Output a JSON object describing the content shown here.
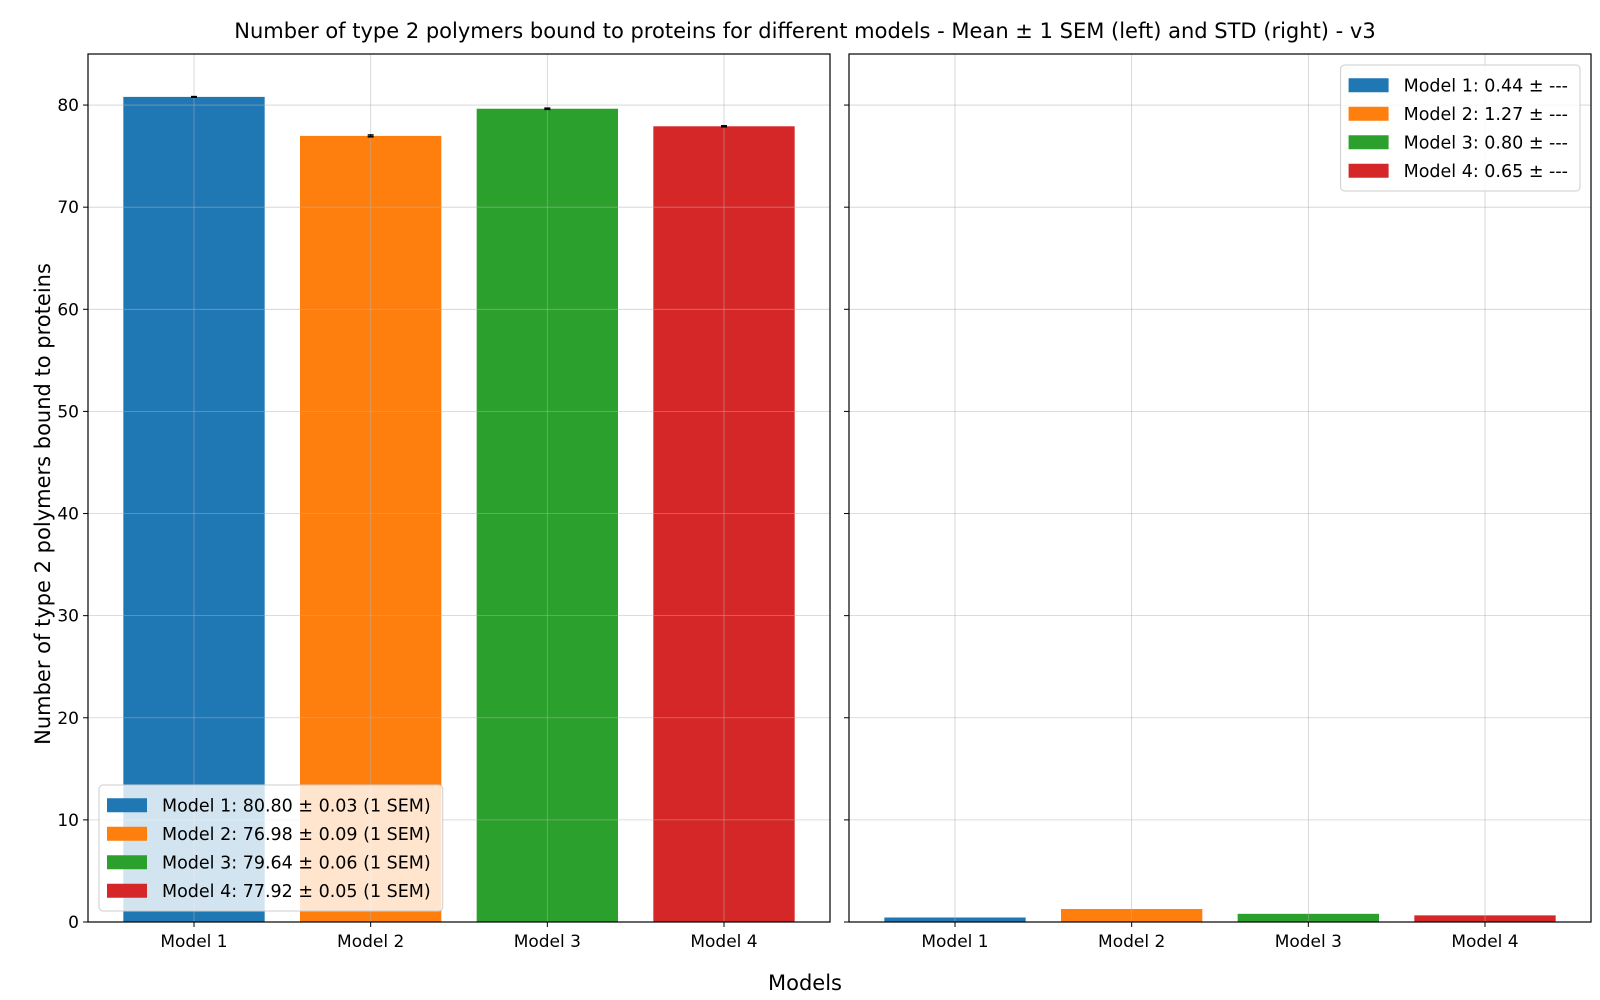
{
  "title": "Number of type 2 polymers bound to proteins for different models - Mean ± 1 SEM (left) and STD (right) - v3",
  "xlabel": "Models",
  "ylabel": "Number of type 2 polymers bound to proteins",
  "colors": [
    "#1f77b4",
    "#ff7f0e",
    "#2ca02c",
    "#d62728"
  ],
  "chart_data": [
    {
      "type": "bar",
      "panel": "left",
      "categories": [
        "Model 1",
        "Model 2",
        "Model 3",
        "Model 4"
      ],
      "values": [
        80.8,
        76.98,
        79.64,
        77.92
      ],
      "errors": [
        0.03,
        0.09,
        0.06,
        0.05
      ],
      "ylim": [
        0,
        85
      ],
      "yticks": [
        0,
        10,
        20,
        30,
        40,
        50,
        60,
        70,
        80
      ],
      "grid": true,
      "legend_position": "lower-left",
      "legend": [
        "Model 1: 80.80 ± 0.03 (1 SEM)",
        "Model 2: 76.98 ± 0.09 (1 SEM)",
        "Model 3: 79.64 ± 0.06 (1 SEM)",
        "Model 4: 77.92 ± 0.05 (1 SEM)"
      ]
    },
    {
      "type": "bar",
      "panel": "right",
      "categories": [
        "Model 1",
        "Model 2",
        "Model 3",
        "Model 4"
      ],
      "values": [
        0.44,
        1.27,
        0.8,
        0.65
      ],
      "ylim": [
        0,
        85
      ],
      "sharey": true,
      "grid": true,
      "legend_position": "upper-right",
      "legend": [
        "Model 1: 0.44 ± ---",
        "Model 2: 1.27 ± ---",
        "Model 3: 0.80 ± ---",
        "Model 4: 0.65 ± ---"
      ]
    }
  ]
}
